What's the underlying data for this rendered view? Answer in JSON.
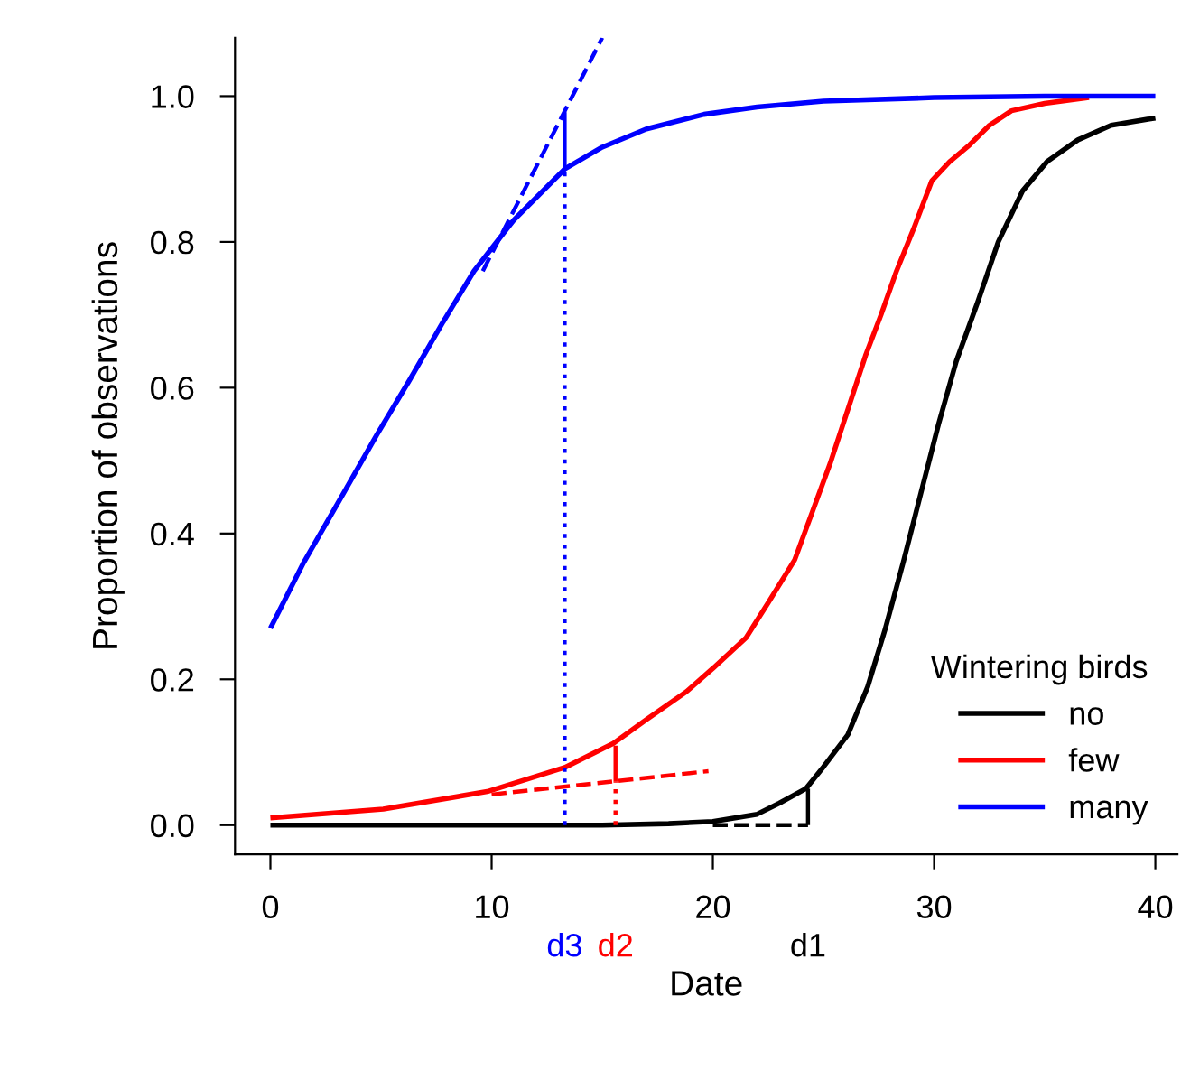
{
  "chart_data": {
    "type": "line",
    "xlabel": "Date",
    "ylabel": "Proportion of observations",
    "legend_title": "Wintering birds",
    "legend": "bottom right",
    "xlim": [
      -1.6,
      41
    ],
    "ylim": [
      -0.04,
      1.08
    ],
    "xticks": [
      0,
      10,
      20,
      30,
      40
    ],
    "yticks": [
      {
        "value": 0,
        "label": "0.0"
      },
      {
        "value": 0.2,
        "label": "0.2"
      },
      {
        "value": 0.4,
        "label": "0.4"
      },
      {
        "value": 0.6,
        "label": "0.6"
      },
      {
        "value": 0.8,
        "label": "0.8"
      },
      {
        "value": 1,
        "label": "1.0"
      }
    ],
    "grid": false,
    "line_style": "solid",
    "series": [
      {
        "name": "no",
        "color": "#000000",
        "x": [
          0,
          5,
          10,
          15,
          18,
          20,
          22,
          23,
          24.2,
          25,
          26.1,
          27,
          27.8,
          28.6,
          29.4,
          30.2,
          31,
          32,
          32.9,
          34,
          35.1,
          36.5,
          38,
          40
        ],
        "values": [
          0,
          0,
          0,
          0,
          0.002,
          0.005,
          0.015,
          0.03,
          0.05,
          0.08,
          0.124,
          0.19,
          0.27,
          0.36,
          0.455,
          0.55,
          0.636,
          0.72,
          0.8,
          0.87,
          0.91,
          0.94,
          0.96,
          0.97
        ]
      },
      {
        "name": "few",
        "color": "#ff0000",
        "x": [
          0,
          5.1,
          9.8,
          13.3,
          15.5,
          17,
          18.8,
          20,
          21.5,
          22.5,
          23.7,
          24.5,
          25.3,
          26.1,
          26.9,
          27.6,
          28.3,
          29.1,
          29.9,
          30.7,
          31.6,
          32.5,
          33.5,
          35,
          37
        ],
        "values": [
          0.01,
          0.022,
          0.046,
          0.079,
          0.112,
          0.145,
          0.183,
          0.215,
          0.257,
          0.305,
          0.364,
          0.43,
          0.496,
          0.57,
          0.644,
          0.7,
          0.76,
          0.82,
          0.884,
          0.91,
          0.933,
          0.96,
          0.98,
          0.99,
          0.998
        ]
      },
      {
        "name": "many",
        "color": "#0000ff",
        "x": [
          0,
          1.5,
          3.3,
          4.8,
          6.3,
          7.8,
          9.2,
          11,
          13.3,
          15,
          17,
          19.6,
          22,
          25,
          30,
          35,
          40
        ],
        "values": [
          0.27,
          0.36,
          0.455,
          0.535,
          0.611,
          0.69,
          0.76,
          0.83,
          0.9,
          0.93,
          0.955,
          0.975,
          0.985,
          0.993,
          0.998,
          1.0,
          1.0
        ]
      },
      {
        "color": "#0000ff",
        "line_style": "dashed",
        "x": [
          9.6,
          15
        ],
        "values": [
          0.76,
          1.08
        ]
      },
      {
        "color": "#0000ff",
        "x": [
          13.3,
          13.3
        ],
        "values": [
          0.9,
          0.978
        ]
      },
      {
        "color": "#0000ff",
        "line_style": "dotted",
        "x": [
          13.3,
          13.3
        ],
        "values": [
          0,
          0.9
        ]
      },
      {
        "color": "#ff0000",
        "line_style": "dashed",
        "x": [
          10,
          19.8
        ],
        "values": [
          0.042,
          0.074
        ]
      },
      {
        "color": "#ff0000",
        "x": [
          15.6,
          15.6
        ],
        "values": [
          0.06,
          0.109
        ]
      },
      {
        "color": "#ff0000",
        "line_style": "dotted",
        "x": [
          15.6,
          15.6
        ],
        "values": [
          0,
          0.06
        ]
      },
      {
        "color": "#000000",
        "line_style": "dashed",
        "x": [
          20,
          24.3
        ],
        "values": [
          0,
          0
        ]
      },
      {
        "color": "#000000",
        "x": [
          24.3,
          24.3
        ],
        "values": [
          0,
          0.05
        ]
      }
    ],
    "annotations": [
      "d3",
      "d2",
      "d1"
    ]
  }
}
